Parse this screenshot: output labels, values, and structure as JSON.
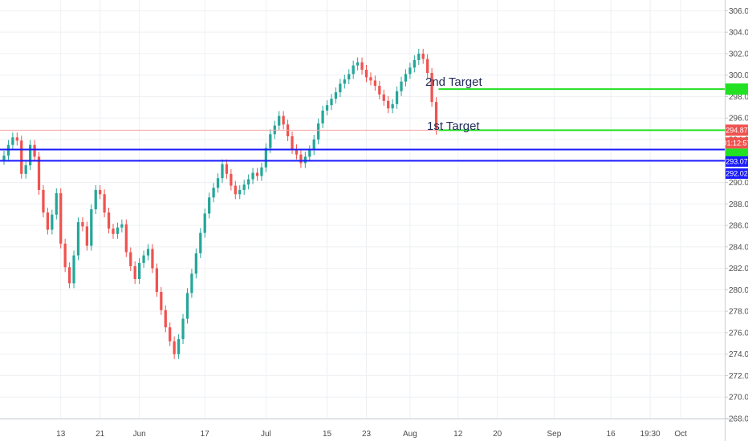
{
  "chart_data": {
    "type": "candlestick",
    "title": "",
    "xlabel": "",
    "ylabel": "",
    "ylim": [
      268,
      307
    ],
    "grid": true,
    "up_color": "#26a69a",
    "down_color": "#ef5350",
    "y_ticks": [
      "268.00",
      "270.00",
      "272.00",
      "274.00",
      "276.00",
      "278.00",
      "280.00",
      "282.00",
      "284.00",
      "286.00",
      "288.00",
      "290.00",
      "292.00",
      "294.00",
      "296.00",
      "298.00",
      "300.00",
      "302.00",
      "304.00",
      "306.00"
    ],
    "x_ticks": [
      {
        "label": "13",
        "i": 13
      },
      {
        "label": "21",
        "i": 22
      },
      {
        "label": "Jun",
        "i": 31
      },
      {
        "label": "17",
        "i": 46
      },
      {
        "label": "Jul",
        "i": 60
      },
      {
        "label": "15",
        "i": 74
      },
      {
        "label": "23",
        "i": 83
      },
      {
        "label": "Aug",
        "i": 93
      },
      {
        "label": "12",
        "i": 104
      },
      {
        "label": "20",
        "i": 113
      },
      {
        "label": "Sep",
        "i": 126
      },
      {
        "label": "16",
        "i": 139
      },
      {
        "label": "19:30",
        "i": 148
      },
      {
        "label": "Oct",
        "i": 155
      }
    ],
    "n_slots": 166,
    "closes": [
      292.5,
      293.5,
      294.2,
      293.9,
      290.8,
      291.6,
      293.5,
      292.4,
      289.3,
      287.2,
      285.6,
      287.0,
      289.0,
      284.3,
      282.1,
      280.6,
      283.2,
      286.3,
      285.9,
      284.1,
      287.5,
      289.3,
      288.9,
      287.2,
      285.7,
      285.2,
      285.8,
      286.1,
      283.5,
      282.2,
      281.0,
      282.5,
      283.2,
      283.8,
      282.0,
      279.8,
      278.1,
      276.5,
      275.2,
      274.0,
      275.4,
      277.3,
      279.7,
      281.5,
      283.4,
      285.3,
      287.1,
      288.6,
      289.5,
      290.4,
      291.7,
      290.8,
      289.7,
      288.9,
      289.3,
      289.8,
      290.3,
      290.9,
      290.6,
      291.4,
      293.2,
      294.5,
      295.3,
      296.2,
      295.4,
      294.3,
      293.1,
      292.6,
      291.8,
      292.4,
      293.0,
      294.0,
      295.5,
      296.7,
      297.2,
      297.8,
      298.4,
      299.2,
      299.6,
      300.1,
      300.9,
      301.2,
      300.5,
      299.8,
      299.5,
      299.0,
      298.2,
      297.6,
      296.9,
      297.3,
      298.5,
      299.4,
      300.1,
      300.7,
      301.4,
      302.0,
      301.5,
      300.2,
      297.5,
      294.9
    ],
    "annotations": {
      "target2_label": "2nd Target",
      "target1_label": "1st Target"
    },
    "levels": {
      "target2": 298.7,
      "target1": 294.87,
      "blue_upper": 293.07,
      "blue_lower": 292.02,
      "red_line": 294.87
    },
    "price_tags": {
      "target2_tag": "",
      "last_price": "294.87",
      "countdown": "01:12:57",
      "green_tag": "",
      "blue_upper_tag": "293.07",
      "blue_lower_tag": "292.02"
    }
  }
}
